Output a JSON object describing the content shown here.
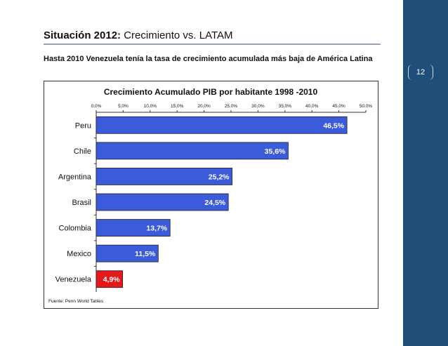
{
  "slide": {
    "title_bold": "Situación 2012:",
    "title_rest": "Crecimiento vs. LATAM",
    "subtitle": "Hasta 2010 Venezuela tenía la tasa de crecimiento acumulada más baja de América Latina",
    "page_number": "12"
  },
  "colors": {
    "sidebar": "#1f4e79",
    "bar": "#3b5bdb",
    "highlight": "#e31a1c"
  },
  "chart_data": {
    "type": "bar",
    "orientation": "horizontal",
    "title": "Crecimiento  Acumulado PIB por habitante 1998 -2010",
    "categories": [
      "Peru",
      "Chile",
      "Argentina",
      "Brasil",
      "Colombia",
      "Mexico",
      "Venezuela"
    ],
    "values": [
      46.5,
      35.6,
      25.2,
      24.5,
      13.7,
      11.5,
      4.9
    ],
    "value_labels": [
      "46,5%",
      "35,6%",
      "25,2%",
      "24,5%",
      "13,7%",
      "11,5%",
      "4,9%"
    ],
    "highlight_category": "Venezuela",
    "xlim": [
      0,
      50
    ],
    "x_ticks": [
      "0,0%",
      "5,0%",
      "10,0%",
      "15,0%",
      "20,0%",
      "25,0%",
      "30,0%",
      "35,0%",
      "40,0%",
      "45,0%",
      "50,0%"
    ],
    "x_axis_position": "top",
    "grid": false,
    "source": "Fuente: Penn World Tables"
  }
}
